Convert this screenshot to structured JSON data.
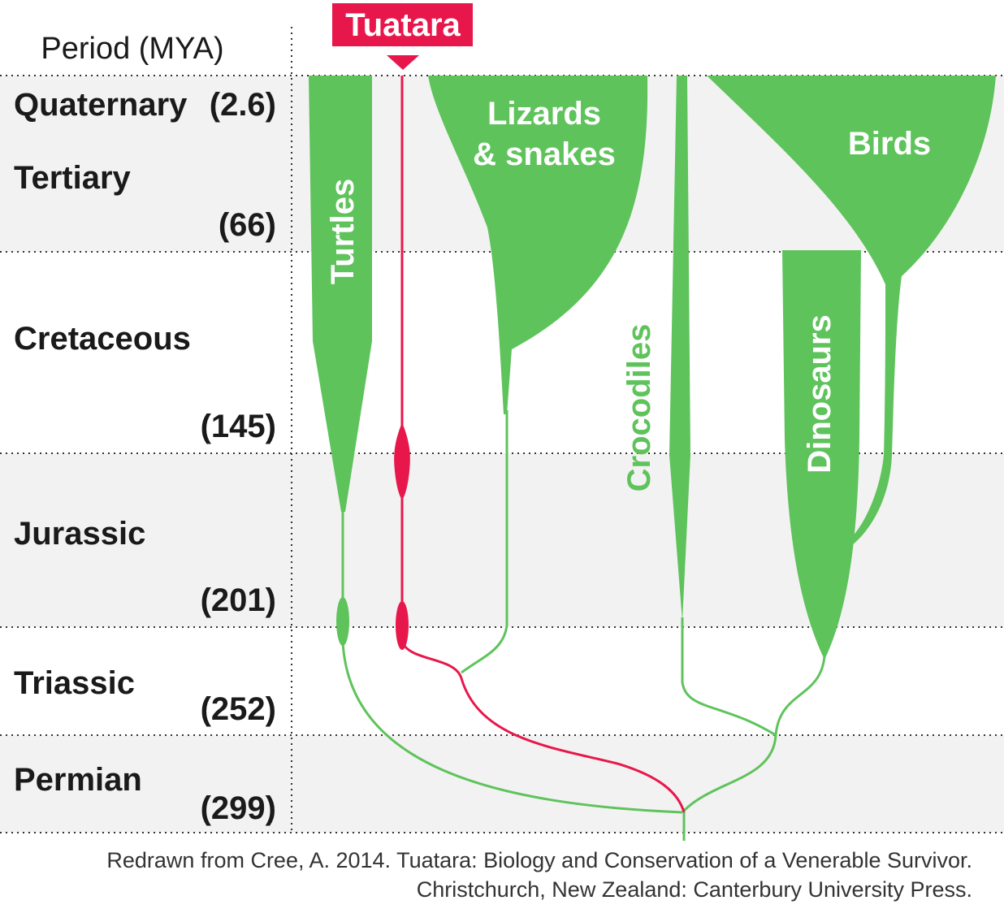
{
  "header": {
    "period_label": "Period (MYA)",
    "highlight_label": "Tuatara"
  },
  "periods": [
    {
      "name": "Quaternary",
      "mya": "(2.6)"
    },
    {
      "name": "Tertiary",
      "mya": "(66)"
    },
    {
      "name": "Cretaceous",
      "mya": "(145)"
    },
    {
      "name": "Jurassic",
      "mya": "(201)"
    },
    {
      "name": "Triassic",
      "mya": "(252)"
    },
    {
      "name": "Permian",
      "mya": "(299)"
    }
  ],
  "lineages": {
    "turtles": "Turtles",
    "lizards_line1": "Lizards",
    "lizards_line2": "& snakes",
    "crocodiles": "Crocodiles",
    "dinosaurs": "Dinosaurs",
    "birds": "Birds"
  },
  "colors": {
    "green": "#5fc35c",
    "red": "#e8174b",
    "band": "#f2f2f2",
    "text": "#1a1a1a"
  },
  "footer": {
    "line1": "Redrawn from Cree, A. 2014. Tuatara: Biology and Conservation of a Venerable Survivor.",
    "line2": "Christchurch, New Zealand: Canterbury University Press."
  }
}
